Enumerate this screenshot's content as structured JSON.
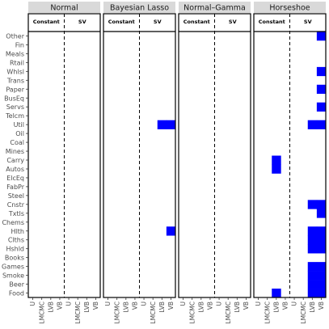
{
  "chart_data": {
    "type": "heatmap",
    "panels": [
      "Normal",
      "Bayesian Lasso",
      "Normal–Gamma",
      "Horseshoe"
    ],
    "subpanels": [
      "Constant",
      "SV"
    ],
    "methods": [
      "U",
      "LMCMC",
      "LVB",
      "VB"
    ],
    "rows": [
      "Other",
      "Fin",
      "Meals",
      "Rtail",
      "Whlsl",
      "Trans",
      "Paper",
      "BusEq",
      "Servs",
      "Telcm",
      "Util",
      "Oil",
      "Coal",
      "Mines",
      "Carry",
      "Autos",
      "ElcEq",
      "FabPr",
      "Steel",
      "Cnstr",
      "Txtls",
      "Chems",
      "Hlth",
      "Clths",
      "Hshld",
      "Books",
      "Games",
      "Smoke",
      "Beer",
      "Food"
    ],
    "fill_color": "#0000ff",
    "cells": [
      {
        "panel": "Bayesian Lasso",
        "subpanel": "SV",
        "method": "LVB",
        "row": "Util"
      },
      {
        "panel": "Bayesian Lasso",
        "subpanel": "SV",
        "method": "VB",
        "row": "Util"
      },
      {
        "panel": "Bayesian Lasso",
        "subpanel": "SV",
        "method": "VB",
        "row": "Hlth"
      },
      {
        "panel": "Horseshoe",
        "subpanel": "Constant",
        "method": "LVB",
        "row": "Carry"
      },
      {
        "panel": "Horseshoe",
        "subpanel": "Constant",
        "method": "LVB",
        "row": "Autos"
      },
      {
        "panel": "Horseshoe",
        "subpanel": "Constant",
        "method": "LVB",
        "row": "Food"
      },
      {
        "panel": "Horseshoe",
        "subpanel": "SV",
        "method": "VB",
        "row": "Other"
      },
      {
        "panel": "Horseshoe",
        "subpanel": "SV",
        "method": "VB",
        "row": "Whlsl"
      },
      {
        "panel": "Horseshoe",
        "subpanel": "SV",
        "method": "VB",
        "row": "Paper"
      },
      {
        "panel": "Horseshoe",
        "subpanel": "SV",
        "method": "VB",
        "row": "Servs"
      },
      {
        "panel": "Horseshoe",
        "subpanel": "SV",
        "method": "LVB",
        "row": "Util"
      },
      {
        "panel": "Horseshoe",
        "subpanel": "SV",
        "method": "VB",
        "row": "Util"
      },
      {
        "panel": "Horseshoe",
        "subpanel": "SV",
        "method": "LVB",
        "row": "Cnstr"
      },
      {
        "panel": "Horseshoe",
        "subpanel": "SV",
        "method": "VB",
        "row": "Cnstr"
      },
      {
        "panel": "Horseshoe",
        "subpanel": "SV",
        "method": "VB",
        "row": "Txtls"
      },
      {
        "panel": "Horseshoe",
        "subpanel": "SV",
        "method": "LVB",
        "row": "Hlth"
      },
      {
        "panel": "Horseshoe",
        "subpanel": "SV",
        "method": "VB",
        "row": "Hlth"
      },
      {
        "panel": "Horseshoe",
        "subpanel": "SV",
        "method": "LVB",
        "row": "Clths"
      },
      {
        "panel": "Horseshoe",
        "subpanel": "SV",
        "method": "VB",
        "row": "Clths"
      },
      {
        "panel": "Horseshoe",
        "subpanel": "SV",
        "method": "LVB",
        "row": "Hshld"
      },
      {
        "panel": "Horseshoe",
        "subpanel": "SV",
        "method": "VB",
        "row": "Hshld"
      },
      {
        "panel": "Horseshoe",
        "subpanel": "SV",
        "method": "LVB",
        "row": "Games"
      },
      {
        "panel": "Horseshoe",
        "subpanel": "SV",
        "method": "VB",
        "row": "Games"
      },
      {
        "panel": "Horseshoe",
        "subpanel": "SV",
        "method": "LVB",
        "row": "Smoke"
      },
      {
        "panel": "Horseshoe",
        "subpanel": "SV",
        "method": "VB",
        "row": "Smoke"
      },
      {
        "panel": "Horseshoe",
        "subpanel": "SV",
        "method": "LVB",
        "row": "Beer"
      },
      {
        "panel": "Horseshoe",
        "subpanel": "SV",
        "method": "VB",
        "row": "Beer"
      },
      {
        "panel": "Horseshoe",
        "subpanel": "SV",
        "method": "LVB",
        "row": "Food"
      },
      {
        "panel": "Horseshoe",
        "subpanel": "SV",
        "method": "VB",
        "row": "Food"
      }
    ],
    "title": "",
    "xlabel": "",
    "ylabel": "",
    "grid": false,
    "legend": "none"
  }
}
